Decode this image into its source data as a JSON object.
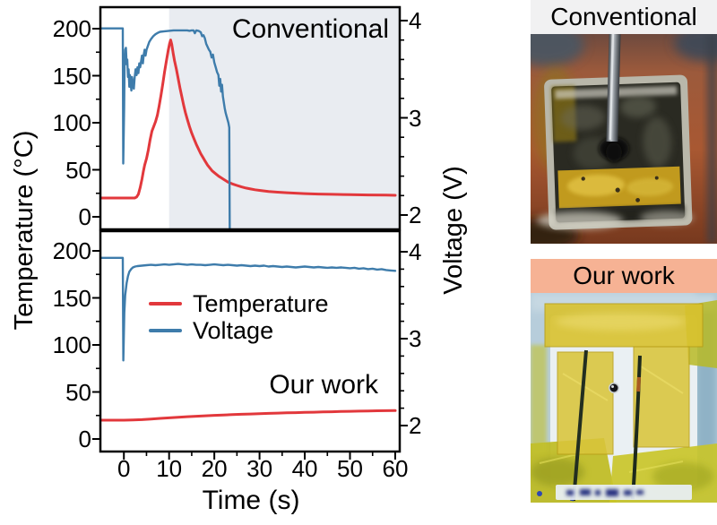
{
  "figure": {
    "time_axis_label": "Time (s)",
    "temp_axis_label": "Temperature (°C)",
    "volt_axis_label": "Voltage (V)"
  },
  "chart_data": [
    {
      "type": "line",
      "panel": "top",
      "title": "Conventional",
      "xlabel": "Time (s)",
      "ylabel_left": "Temperature (°C)",
      "ylabel_right": "Voltage (V)",
      "xlim": [
        -5,
        61
      ],
      "x_major_ticks": [
        0,
        10,
        20,
        30,
        40,
        50,
        60
      ],
      "x_minor_ticks": [
        5,
        15,
        25,
        35,
        45,
        55
      ],
      "temp_ylim": [
        -12,
        222
      ],
      "temp_major_ticks": [
        0,
        50,
        100,
        150,
        200
      ],
      "temp_minor_ticks": [
        25,
        75,
        125,
        175
      ],
      "volt_ylim": [
        1.86,
        4.13
      ],
      "volt_major_ticks": [
        2,
        3,
        4
      ],
      "volt_minor_ticks": [
        2.2,
        2.4,
        2.6,
        2.8,
        3.2,
        3.4,
        3.6,
        3.8
      ],
      "shaded_region": {
        "t_start": 10,
        "t_end": 61,
        "color": "#E9ECF1"
      },
      "series": [
        {
          "name": "Temperature",
          "axis": "temp",
          "color": "#E2383C",
          "width": 3,
          "points": [
            [
              -5,
              20
            ],
            [
              2.4,
              20
            ],
            [
              2.8,
              21
            ],
            [
              3.2,
              24
            ],
            [
              3.6,
              31
            ],
            [
              4,
              40
            ],
            [
              4.3,
              48
            ],
            [
              4.6,
              55
            ],
            [
              5,
              62
            ],
            [
              5.4,
              71
            ],
            [
              5.8,
              82
            ],
            [
              6.2,
              91
            ],
            [
              6.6,
              96
            ],
            [
              7,
              101
            ],
            [
              7.4,
              108
            ],
            [
              7.8,
              118
            ],
            [
              8.2,
              129
            ],
            [
              8.6,
              141
            ],
            [
              9,
              154
            ],
            [
              9.4,
              166
            ],
            [
              9.8,
              177
            ],
            [
              10.1,
              184
            ],
            [
              10.35,
              188
            ],
            [
              10.6,
              183
            ],
            [
              10.9,
              174
            ],
            [
              11.2,
              166
            ],
            [
              11.6,
              157
            ],
            [
              12,
              147
            ],
            [
              12.4,
              137
            ],
            [
              12.8,
              128
            ],
            [
              13.2,
              119
            ],
            [
              13.6,
              111
            ],
            [
              14,
              104
            ],
            [
              14.5,
              96
            ],
            [
              15,
              89
            ],
            [
              15.5,
              83
            ],
            [
              16,
              77
            ],
            [
              16.5,
              72
            ],
            [
              17,
              67
            ],
            [
              17.5,
              63
            ],
            [
              18,
              59
            ],
            [
              18.5,
              55
            ],
            [
              19,
              52
            ],
            [
              19.5,
              49
            ],
            [
              20,
              47
            ],
            [
              20.5,
              45
            ],
            [
              21,
              43
            ],
            [
              21.5,
              41.5
            ],
            [
              22,
              40
            ],
            [
              22.5,
              38.5
            ],
            [
              23,
              37
            ],
            [
              23.5,
              36
            ],
            [
              24,
              35
            ],
            [
              25,
              33.3
            ],
            [
              26,
              31.8
            ],
            [
              27,
              30.6
            ],
            [
              28,
              29.6
            ],
            [
              29,
              28.8
            ],
            [
              30,
              28.1
            ],
            [
              31,
              27.5
            ],
            [
              32,
              27
            ],
            [
              34,
              26.2
            ],
            [
              36,
              25.6
            ],
            [
              38,
              25.1
            ],
            [
              40,
              24.7
            ],
            [
              43,
              24.2
            ],
            [
              46,
              23.9
            ],
            [
              50,
              23.5
            ],
            [
              54,
              23.2
            ],
            [
              58,
              23
            ],
            [
              60,
              22.9
            ]
          ]
        },
        {
          "name": "Voltage",
          "axis": "volt",
          "color": "#3E7CAB",
          "width": 2.4,
          "points": [
            [
              -5,
              3.92
            ],
            [
              -0.25,
              3.92
            ],
            [
              -0.15,
              2.53
            ],
            [
              0.05,
              3.1
            ],
            [
              0.15,
              3.55
            ],
            [
              0.3,
              3.7
            ],
            [
              0.45,
              3.72
            ],
            [
              0.6,
              3.55
            ],
            [
              0.75,
              3.6
            ],
            [
              0.9,
              3.42
            ],
            [
              1.05,
              3.5
            ],
            [
              1.2,
              3.32
            ],
            [
              1.35,
              3.44
            ],
            [
              1.5,
              3.35
            ],
            [
              1.65,
              3.28
            ],
            [
              1.8,
              3.42
            ],
            [
              2,
              3.36
            ],
            [
              2.2,
              3.3
            ],
            [
              2.4,
              3.42
            ],
            [
              2.6,
              3.5
            ],
            [
              2.8,
              3.44
            ],
            [
              3,
              3.52
            ],
            [
              3.2,
              3.46
            ],
            [
              3.4,
              3.56
            ],
            [
              3.6,
              3.52
            ],
            [
              3.8,
              3.58
            ],
            [
              4,
              3.64
            ],
            [
              4.2,
              3.56
            ],
            [
              4.4,
              3.65
            ],
            [
              4.6,
              3.7
            ],
            [
              4.8,
              3.64
            ],
            [
              5,
              3.7
            ],
            [
              5.3,
              3.74
            ],
            [
              5.6,
              3.78
            ],
            [
              6,
              3.81
            ],
            [
              6.5,
              3.84
            ],
            [
              7,
              3.86
            ],
            [
              7.5,
              3.875
            ],
            [
              8,
              3.885
            ],
            [
              9,
              3.89
            ],
            [
              10,
              3.895
            ],
            [
              11,
              3.9
            ],
            [
              12,
              3.9
            ],
            [
              13,
              3.9
            ],
            [
              14,
              3.9
            ],
            [
              14.5,
              3.895
            ],
            [
              15,
              3.9
            ],
            [
              15.4,
              3.9
            ],
            [
              15.7,
              3.87
            ],
            [
              16,
              3.9
            ],
            [
              16.5,
              3.895
            ],
            [
              17,
              3.88
            ],
            [
              17.3,
              3.84
            ],
            [
              17.6,
              3.85
            ],
            [
              17.9,
              3.82
            ],
            [
              18.2,
              3.76
            ],
            [
              18.5,
              3.73
            ],
            [
              18.8,
              3.7
            ],
            [
              19.1,
              3.68
            ],
            [
              19.4,
              3.62
            ],
            [
              19.7,
              3.65
            ],
            [
              20,
              3.57
            ],
            [
              20.3,
              3.52
            ],
            [
              20.6,
              3.47
            ],
            [
              20.9,
              3.44
            ],
            [
              21.1,
              3.33
            ],
            [
              21.3,
              3.4
            ],
            [
              21.5,
              3.27
            ],
            [
              21.7,
              3.34
            ],
            [
              21.9,
              3.22
            ],
            [
              22.1,
              3.16
            ],
            [
              22.3,
              3.1
            ],
            [
              22.5,
              3.05
            ],
            [
              22.8,
              3.0
            ],
            [
              23.1,
              2.95
            ],
            [
              23.3,
              2.9
            ],
            [
              23.42,
              1.7
            ]
          ]
        }
      ]
    },
    {
      "type": "line",
      "panel": "bottom",
      "title": "Our work",
      "xlabel": "Time (s)",
      "ylabel_left": "Temperature (°C)",
      "ylabel_right": "Voltage (V)",
      "xlim": [
        -5,
        61
      ],
      "x_major_ticks": [
        0,
        10,
        20,
        30,
        40,
        50,
        60
      ],
      "x_minor_ticks": [
        5,
        15,
        25,
        35,
        45,
        55
      ],
      "temp_ylim": [
        -12,
        220
      ],
      "temp_major_ticks": [
        0,
        50,
        100,
        150,
        200
      ],
      "temp_minor_ticks": [
        25,
        75,
        125,
        175
      ],
      "volt_ylim": [
        1.71,
        4.23
      ],
      "volt_major_ticks": [
        2,
        3,
        4
      ],
      "volt_minor_ticks": [
        2.2,
        2.4,
        2.6,
        2.8,
        3.2,
        3.4,
        3.6,
        3.8
      ],
      "shaded_region": null,
      "legend_entries": [
        "Temperature",
        "Voltage"
      ],
      "series": [
        {
          "name": "Temperature",
          "axis": "temp",
          "color": "#E2383C",
          "width": 3,
          "points": [
            [
              -5,
              20
            ],
            [
              0,
              20
            ],
            [
              2,
              20.2
            ],
            [
              4,
              20.6
            ],
            [
              6,
              21.2
            ],
            [
              8,
              21.9
            ],
            [
              10,
              22.5
            ],
            [
              12,
              23.1
            ],
            [
              14,
              23.7
            ],
            [
              16,
              24.2
            ],
            [
              18,
              24.7
            ],
            [
              20,
              25.1
            ],
            [
              22,
              25.5
            ],
            [
              24,
              25.9
            ],
            [
              26,
              26.3
            ],
            [
              28,
              26.6
            ],
            [
              30,
              26.9
            ],
            [
              32,
              27.2
            ],
            [
              34,
              27.5
            ],
            [
              36,
              27.8
            ],
            [
              38,
              28.0
            ],
            [
              40,
              28.3
            ],
            [
              42,
              28.5
            ],
            [
              44,
              28.8
            ],
            [
              46,
              29.0
            ],
            [
              48,
              29.2
            ],
            [
              50,
              29.4
            ],
            [
              52,
              29.6
            ],
            [
              54,
              29.8
            ],
            [
              56,
              30.0
            ],
            [
              58,
              30.1
            ],
            [
              60,
              30.2
            ]
          ]
        },
        {
          "name": "Voltage",
          "axis": "volt",
          "color": "#3E7CAB",
          "width": 2.4,
          "points": [
            [
              -5,
              3.93
            ],
            [
              -0.25,
              3.93
            ],
            [
              -0.12,
              2.75
            ],
            [
              0.1,
              3.3
            ],
            [
              0.3,
              3.5
            ],
            [
              0.6,
              3.64
            ],
            [
              0.9,
              3.72
            ],
            [
              1.2,
              3.77
            ],
            [
              1.6,
              3.8
            ],
            [
              2,
              3.82
            ],
            [
              2.5,
              3.83
            ],
            [
              3,
              3.835
            ],
            [
              4,
              3.84
            ],
            [
              5,
              3.845
            ],
            [
              6,
              3.85
            ],
            [
              7,
              3.845
            ],
            [
              8,
              3.85
            ],
            [
              9,
              3.855
            ],
            [
              10,
              3.85
            ],
            [
              11,
              3.855
            ],
            [
              12,
              3.86
            ],
            [
              13,
              3.855
            ],
            [
              14,
              3.85
            ],
            [
              15,
              3.855
            ],
            [
              16,
              3.85
            ],
            [
              17,
              3.85
            ],
            [
              18,
              3.845
            ],
            [
              19,
              3.85
            ],
            [
              20,
              3.855
            ],
            [
              21,
              3.85
            ],
            [
              22,
              3.845
            ],
            [
              23,
              3.85
            ],
            [
              24,
              3.845
            ],
            [
              25,
              3.84
            ],
            [
              26,
              3.845
            ],
            [
              27,
              3.84
            ],
            [
              28,
              3.835
            ],
            [
              29,
              3.84
            ],
            [
              30,
              3.835
            ],
            [
              31,
              3.84
            ],
            [
              32,
              3.83
            ],
            [
              33,
              3.835
            ],
            [
              34,
              3.83
            ],
            [
              35,
              3.825
            ],
            [
              36,
              3.83
            ],
            [
              37,
              3.825
            ],
            [
              38,
              3.82
            ],
            [
              39,
              3.825
            ],
            [
              40,
              3.83
            ],
            [
              41,
              3.825
            ],
            [
              42,
              3.82
            ],
            [
              43,
              3.825
            ],
            [
              44,
              3.82
            ],
            [
              45,
              3.815
            ],
            [
              46,
              3.82
            ],
            [
              47,
              3.815
            ],
            [
              48,
              3.82
            ],
            [
              49,
              3.815
            ],
            [
              50,
              3.81
            ],
            [
              51,
              3.815
            ],
            [
              52,
              3.805
            ],
            [
              53,
              3.81
            ],
            [
              54,
              3.8
            ],
            [
              55,
              3.805
            ],
            [
              56,
              3.795
            ],
            [
              57,
              3.8
            ],
            [
              58,
              3.79
            ],
            [
              59,
              3.785
            ],
            [
              60,
              3.78
            ]
          ]
        }
      ]
    }
  ],
  "photos": [
    {
      "label": "Conventional",
      "caption_bg": "#F1F1F2",
      "description": "charred burnt pouch cell pierced by a metal nail on copper background"
    },
    {
      "label": "Our work",
      "caption_bg": "#F6B294",
      "description": "intact white pouch cell with yellow kapton tape, two wires and small nail hole"
    }
  ]
}
